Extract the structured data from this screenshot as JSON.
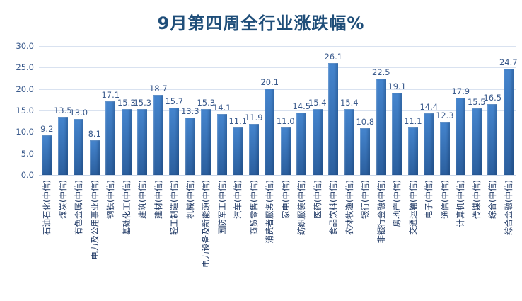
{
  "colors": {
    "title": "#1F4E79",
    "bar_top": "#4585CE",
    "bar_bottom": "#2B5F9E",
    "gridline": "#D9E2F0",
    "baseline": "#C9D6E8",
    "ytick_label": "#3A5A8C",
    "value_label": "#3A5A8C",
    "category_label": "#1F3864"
  },
  "chart_data": {
    "type": "bar",
    "title": "9月第四周全行业涨跌幅%",
    "categories": [
      "石油石化(中信)",
      "煤炭(中信)",
      "有色金属(中信)",
      "电力及公用事业(中信)",
      "钢铁(中信)",
      "基础化工(中信)",
      "建筑(中信)",
      "建材(中信)",
      "轻工制造(中信)",
      "机械(中信)",
      "电力设备及新能源(中信)",
      "国防军工(中信)",
      "汽车(中信)",
      "商贸零售(中信)",
      "消费者服务(中信)",
      "家电(中信)",
      "纺织服装(中信)",
      "医药(中信)",
      "食品饮料(中信)",
      "农林牧渔(中信)",
      "银行(中信)",
      "非银行金融(中信)",
      "房地产(中信)",
      "交通运输(中信)",
      "电子(中信)",
      "通信(中信)",
      "计算机(中信)",
      "传媒(中信)",
      "综合(中信)",
      "综合金融(中信)"
    ],
    "values": [
      9.2,
      13.5,
      13.0,
      8.1,
      17.1,
      15.3,
      15.3,
      18.7,
      15.7,
      13.3,
      15.3,
      14.1,
      11.1,
      11.9,
      20.1,
      11.0,
      14.5,
      15.4,
      26.1,
      15.4,
      10.8,
      22.5,
      19.1,
      11.1,
      14.4,
      12.3,
      17.9,
      15.5,
      16.5,
      24.7
    ],
    "xlabel": "",
    "ylabel": "",
    "ylim": [
      0,
      30
    ],
    "ytick_step": 5,
    "ytick_labels": [
      "0.0",
      "5.0",
      "10.0",
      "15.0",
      "20.0",
      "25.0",
      "30.0"
    ],
    "grid": true,
    "legend": false,
    "value_labels_shown": true,
    "value_label_decimals": 1
  }
}
